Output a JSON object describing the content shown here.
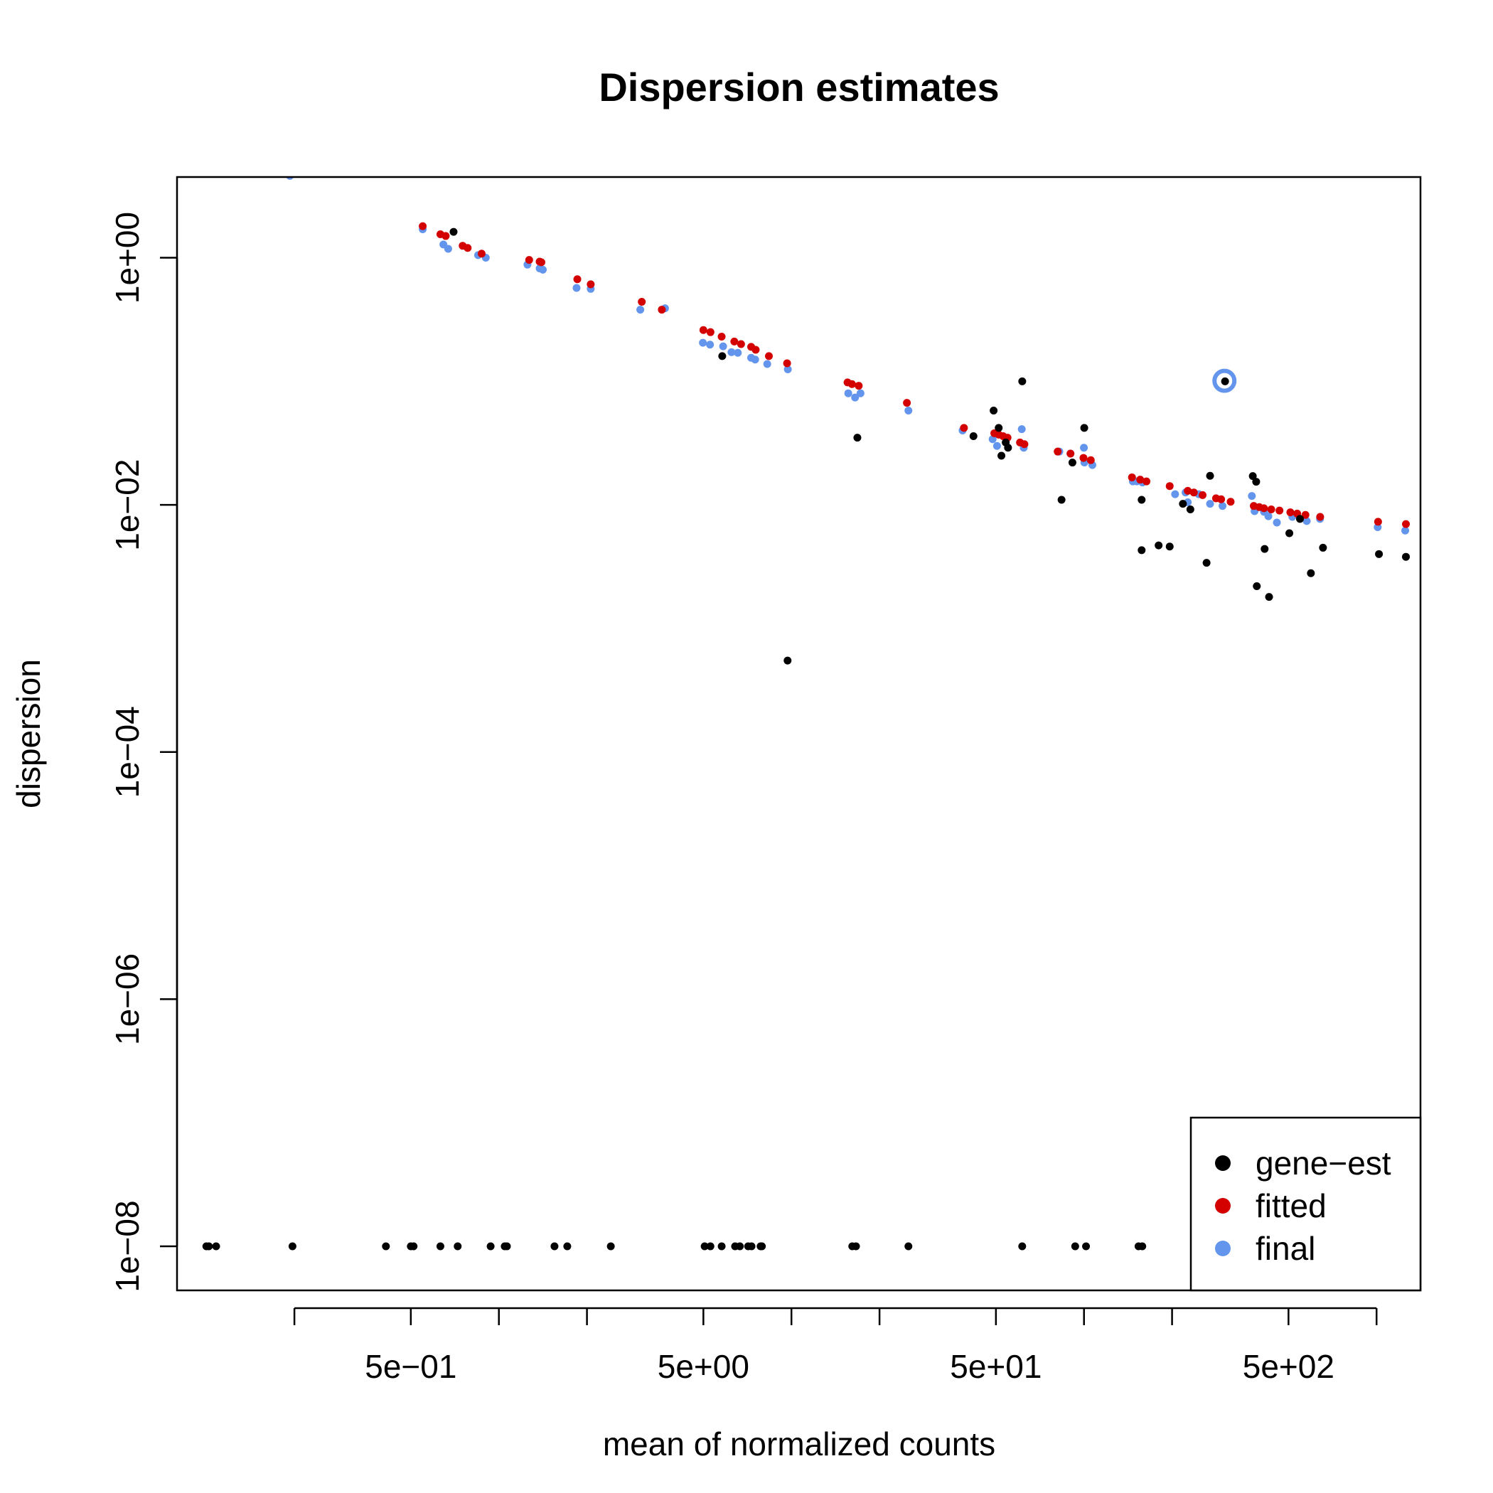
{
  "chart_data": {
    "type": "scatter",
    "title": "Dispersion estimates",
    "xlabel": "mean of normalized counts",
    "ylabel": "dispersion",
    "x_scale": "log",
    "y_scale": "log",
    "xlim": [
      0.0794,
      1413
    ],
    "ylim": [
      4.4e-09,
      4.5
    ],
    "x_ticks": [
      0.2,
      0.5,
      1,
      2,
      5,
      10,
      20,
      50,
      100,
      200,
      500,
      1000
    ],
    "x_tick_labels": [
      {
        "value": 0.5,
        "label": "5e−01"
      },
      {
        "value": 5,
        "label": "5e+00"
      },
      {
        "value": 50,
        "label": "5e+01"
      },
      {
        "value": 500,
        "label": "5e+02"
      }
    ],
    "y_ticks": [
      {
        "value": 1,
        "label": "1e+00"
      },
      {
        "value": 0.01,
        "label": "1e−02"
      },
      {
        "value": 0.0001,
        "label": "1e−04"
      },
      {
        "value": 1e-06,
        "label": "1e−06"
      },
      {
        "value": 1e-08,
        "label": "1e−08"
      }
    ],
    "grid": false,
    "legend_position": "bottom-right",
    "series": [
      {
        "name": "gene−est",
        "color": "#000000",
        "points": [
          [
            0.1,
            1e-08
          ],
          [
            0.102,
            1e-08
          ],
          [
            0.108,
            1e-08
          ],
          [
            0.197,
            1e-08
          ],
          [
            0.411,
            1e-08
          ],
          [
            0.5,
            1e-08
          ],
          [
            0.511,
            1e-08
          ],
          [
            0.631,
            1e-08
          ],
          [
            0.723,
            1e-08
          ],
          [
            0.937,
            1e-08
          ],
          [
            1.047,
            1e-08
          ],
          [
            1.065,
            1e-08
          ],
          [
            1.549,
            1e-08
          ],
          [
            1.713,
            1e-08
          ],
          [
            2.413,
            1e-08
          ],
          [
            5.051,
            1e-08
          ],
          [
            5.285,
            1e-08
          ],
          [
            5.774,
            1e-08
          ],
          [
            6.418,
            1e-08
          ],
          [
            6.663,
            1e-08
          ],
          [
            7.112,
            1e-08
          ],
          [
            7.303,
            1e-08
          ],
          [
            7.844,
            1e-08
          ],
          [
            7.924,
            1e-08
          ],
          [
            16.14,
            1e-08
          ],
          [
            16.62,
            1e-08
          ],
          [
            25.11,
            1e-08
          ],
          [
            61.49,
            1e-08
          ],
          [
            93.3,
            1e-08
          ],
          [
            101.6,
            1e-08
          ],
          [
            153.6,
            1e-08
          ],
          [
            158.2,
            1e-08
          ],
          [
            250,
            1e-08
          ],
          [
            0.7,
            1.62
          ],
          [
            5.8,
            0.16
          ],
          [
            9.7,
            0.00055
          ],
          [
            16.8,
            0.035
          ],
          [
            41.9,
            0.036
          ],
          [
            49.1,
            0.058
          ],
          [
            51.1,
            0.042
          ],
          [
            52.2,
            0.025
          ],
          [
            54,
            0.032
          ],
          [
            55,
            0.029
          ],
          [
            61.5,
            0.1
          ],
          [
            83.8,
            0.011
          ],
          [
            91.3,
            0.022
          ],
          [
            100.2,
            0.042
          ],
          [
            157.4,
            0.011
          ],
          [
            157.4,
            0.0043
          ],
          [
            179.9,
            0.0047
          ],
          [
            196.3,
            0.0046
          ],
          [
            217.8,
            0.0102
          ],
          [
            231,
            0.0092
          ],
          [
            262.4,
            0.0034
          ],
          [
            269.7,
            0.0172
          ],
          [
            303.5,
            0.1
          ],
          [
            377.5,
            0.0171
          ],
          [
            387.7,
            0.0154
          ],
          [
            389.6,
            0.0022
          ],
          [
            414.4,
            0.0044
          ],
          [
            429.1,
            0.0018
          ],
          [
            503.4,
            0.0059
          ],
          [
            547.3,
            0.0077
          ],
          [
            596.3,
            0.0028
          ],
          [
            656,
            0.0045
          ],
          [
            1019,
            0.004
          ],
          [
            1260,
            0.0038
          ]
        ]
      },
      {
        "name": "fitted",
        "color": "#d40000",
        "points": [
          [
            0.549,
            1.8
          ],
          [
            0.631,
            1.55
          ],
          [
            0.658,
            1.5
          ],
          [
            0.752,
            1.25
          ],
          [
            0.782,
            1.2
          ],
          [
            0.873,
            1.08
          ],
          [
            1.269,
            0.96
          ],
          [
            1.378,
            0.93
          ],
          [
            1.397,
            0.92
          ],
          [
            1.854,
            0.67
          ],
          [
            2.06,
            0.61
          ],
          [
            3.079,
            0.44
          ],
          [
            3.605,
            0.38
          ],
          [
            5,
            0.26
          ],
          [
            5.288,
            0.25
          ],
          [
            5.773,
            0.23
          ],
          [
            6.379,
            0.21
          ],
          [
            6.726,
            0.2
          ],
          [
            7.282,
            0.19
          ],
          [
            7.547,
            0.18
          ],
          [
            8.373,
            0.16
          ],
          [
            9.663,
            0.14
          ],
          [
            15.55,
            0.098
          ],
          [
            16.1,
            0.095
          ],
          [
            16.98,
            0.092
          ],
          [
            24.81,
            0.067
          ],
          [
            38.87,
            0.042
          ],
          [
            49.37,
            0.038
          ],
          [
            51.13,
            0.037
          ],
          [
            52.91,
            0.036
          ],
          [
            54.78,
            0.035
          ],
          [
            60.43,
            0.032
          ],
          [
            62.56,
            0.031
          ],
          [
            81.29,
            0.027
          ],
          [
            89.91,
            0.026
          ],
          [
            99.58,
            0.024
          ],
          [
            105.5,
            0.023
          ],
          [
            145.9,
            0.0167
          ],
          [
            155.6,
            0.016
          ],
          [
            163.5,
            0.0155
          ],
          [
            196.3,
            0.0142
          ],
          [
            226.3,
            0.013
          ],
          [
            237.4,
            0.0126
          ],
          [
            254.3,
            0.012
          ],
          [
            282.7,
            0.0113
          ],
          [
            294.3,
            0.0111
          ],
          [
            317.1,
            0.0106
          ],
          [
            380.4,
            0.0098
          ],
          [
            397.3,
            0.0096
          ],
          [
            412.3,
            0.0094
          ],
          [
            436.6,
            0.0092
          ],
          [
            465.8,
            0.009
          ],
          [
            507.3,
            0.0087
          ],
          [
            535.4,
            0.0085
          ],
          [
            571.4,
            0.0083
          ],
          [
            641.5,
            0.008
          ],
          [
            1012,
            0.0073
          ],
          [
            1260,
            0.007
          ]
        ]
      },
      {
        "name": "final",
        "color": "#6495ed",
        "points": [
          [
            0.193,
            4.6
          ],
          [
            0.549,
            1.7
          ],
          [
            0.646,
            1.28
          ],
          [
            0.671,
            1.18
          ],
          [
            0.849,
            1.05
          ],
          [
            0.902,
            1.0
          ],
          [
            1.252,
            0.88
          ],
          [
            1.378,
            0.82
          ],
          [
            1.413,
            0.8
          ],
          [
            1.843,
            0.57
          ],
          [
            2.06,
            0.56
          ],
          [
            3.043,
            0.38
          ],
          [
            3.697,
            0.39
          ],
          [
            4.981,
            0.205
          ],
          [
            5.267,
            0.198
          ],
          [
            5.84,
            0.192
          ],
          [
            6.238,
            0.172
          ],
          [
            6.557,
            0.17
          ],
          [
            7.282,
            0.155
          ],
          [
            7.516,
            0.15
          ],
          [
            8.266,
            0.138
          ],
          [
            9.719,
            0.125
          ],
          [
            15.64,
            0.08
          ],
          [
            16.5,
            0.074
          ],
          [
            17.22,
            0.08
          ],
          [
            25.11,
            0.058
          ],
          [
            38.46,
            0.04
          ],
          [
            48.72,
            0.034
          ],
          [
            50.42,
            0.03
          ],
          [
            61.27,
            0.041
          ],
          [
            62.23,
            0.029
          ],
          [
            82.35,
            0.027
          ],
          [
            89.91,
            0.026
          ],
          [
            99.92,
            0.029
          ],
          [
            100.3,
            0.022
          ],
          [
            106.8,
            0.021
          ],
          [
            146.9,
            0.0155
          ],
          [
            151.6,
            0.0155
          ],
          [
            158.4,
            0.0152
          ],
          [
            204.8,
            0.0122
          ],
          [
            222.4,
            0.0126
          ],
          [
            226.3,
            0.0105
          ],
          [
            246.7,
            0.0122
          ],
          [
            269.7,
            0.0102
          ],
          [
            297.5,
            0.0098
          ],
          [
            374.7,
            0.0118
          ],
          [
            382.9,
            0.0089
          ],
          [
            412.3,
            0.0088
          ],
          [
            426.8,
            0.0081
          ],
          [
            456.3,
            0.0072
          ],
          [
            515.4,
            0.008
          ],
          [
            577.2,
            0.0074
          ],
          [
            640.7,
            0.0077
          ],
          [
            1009,
            0.0066
          ],
          [
            1253,
            0.0062
          ]
        ]
      }
    ],
    "outlier_marker": {
      "series": "final",
      "x": 302,
      "y": 0.101
    }
  }
}
